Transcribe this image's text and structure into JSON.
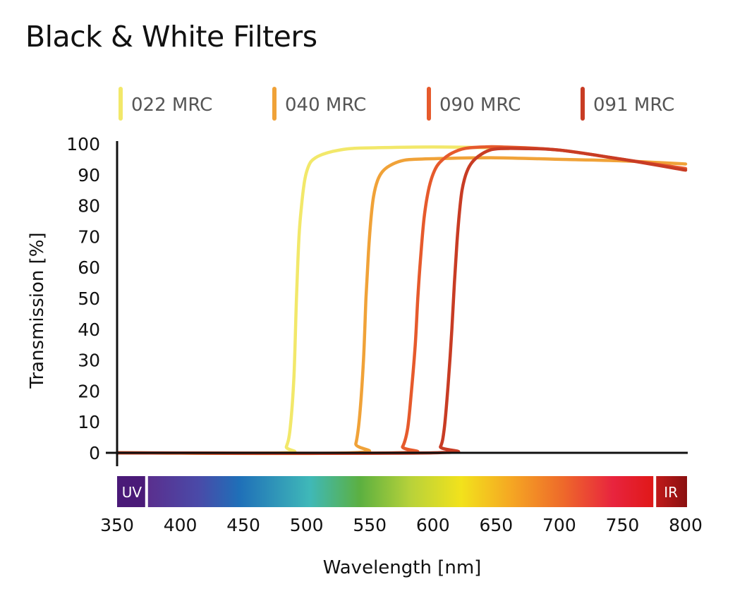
{
  "chart_data": {
    "type": "line",
    "title": "Black & White Filters",
    "xlabel": "Wavelength [nm]",
    "ylabel": "Transmission [%]",
    "xlim": [
      350,
      800
    ],
    "ylim": [
      0,
      100
    ],
    "xticks": [
      350,
      400,
      450,
      500,
      550,
      600,
      650,
      700,
      750,
      800
    ],
    "yticks": [
      0,
      10,
      20,
      30,
      40,
      50,
      60,
      70,
      80,
      90,
      100
    ],
    "grid": false,
    "legend_position": "top",
    "spectrum_bar": {
      "left_label": "UV",
      "right_label": "IR",
      "visible_start": 375,
      "visible_end": 775
    },
    "series": [
      {
        "name": "022 MRC",
        "color": "#f2e86a",
        "x": [
          350,
          480,
          484,
          487,
          490,
          492,
          494,
          496,
          498,
          500,
          503,
          507,
          512,
          520,
          535,
          560,
          600,
          640,
          660
        ],
        "y": [
          0,
          0,
          2,
          8,
          25,
          50,
          70,
          80,
          87,
          91,
          94,
          95.5,
          96.5,
          97.5,
          98.5,
          98.8,
          99,
          98.8,
          98.5
        ]
      },
      {
        "name": "040 MRC",
        "color": "#f0a238",
        "x": [
          350,
          535,
          539,
          542,
          545,
          547,
          549,
          551,
          553,
          556,
          560,
          566,
          575,
          585,
          610,
          650,
          700,
          750,
          800
        ],
        "y": [
          0,
          0,
          3,
          12,
          30,
          50,
          65,
          76,
          83,
          88,
          91,
          93,
          94.5,
          95,
          95.3,
          95.5,
          95,
          94.5,
          93.5
        ]
      },
      {
        "name": "090 MRC",
        "color": "#e65a2c",
        "x": [
          350,
          570,
          576,
          580,
          583,
          586,
          588,
          590,
          593,
          597,
          602,
          608,
          615,
          625,
          640,
          655,
          700,
          750,
          800
        ],
        "y": [
          0,
          0,
          2,
          8,
          20,
          35,
          50,
          62,
          76,
          86,
          92,
          95,
          97,
          98.5,
          99,
          99,
          98,
          95,
          92
        ]
      },
      {
        "name": "091 MRC",
        "color": "#c83c24",
        "x": [
          350,
          600,
          606,
          609,
          612,
          615,
          617,
          619,
          621,
          623,
          626,
          630,
          636,
          645,
          655,
          670,
          700,
          750,
          800
        ],
        "y": [
          0,
          0,
          2,
          8,
          22,
          40,
          55,
          68,
          78,
          85,
          90,
          93.5,
          96,
          98,
          98.5,
          98.5,
          98,
          95,
          91.5
        ]
      }
    ]
  }
}
